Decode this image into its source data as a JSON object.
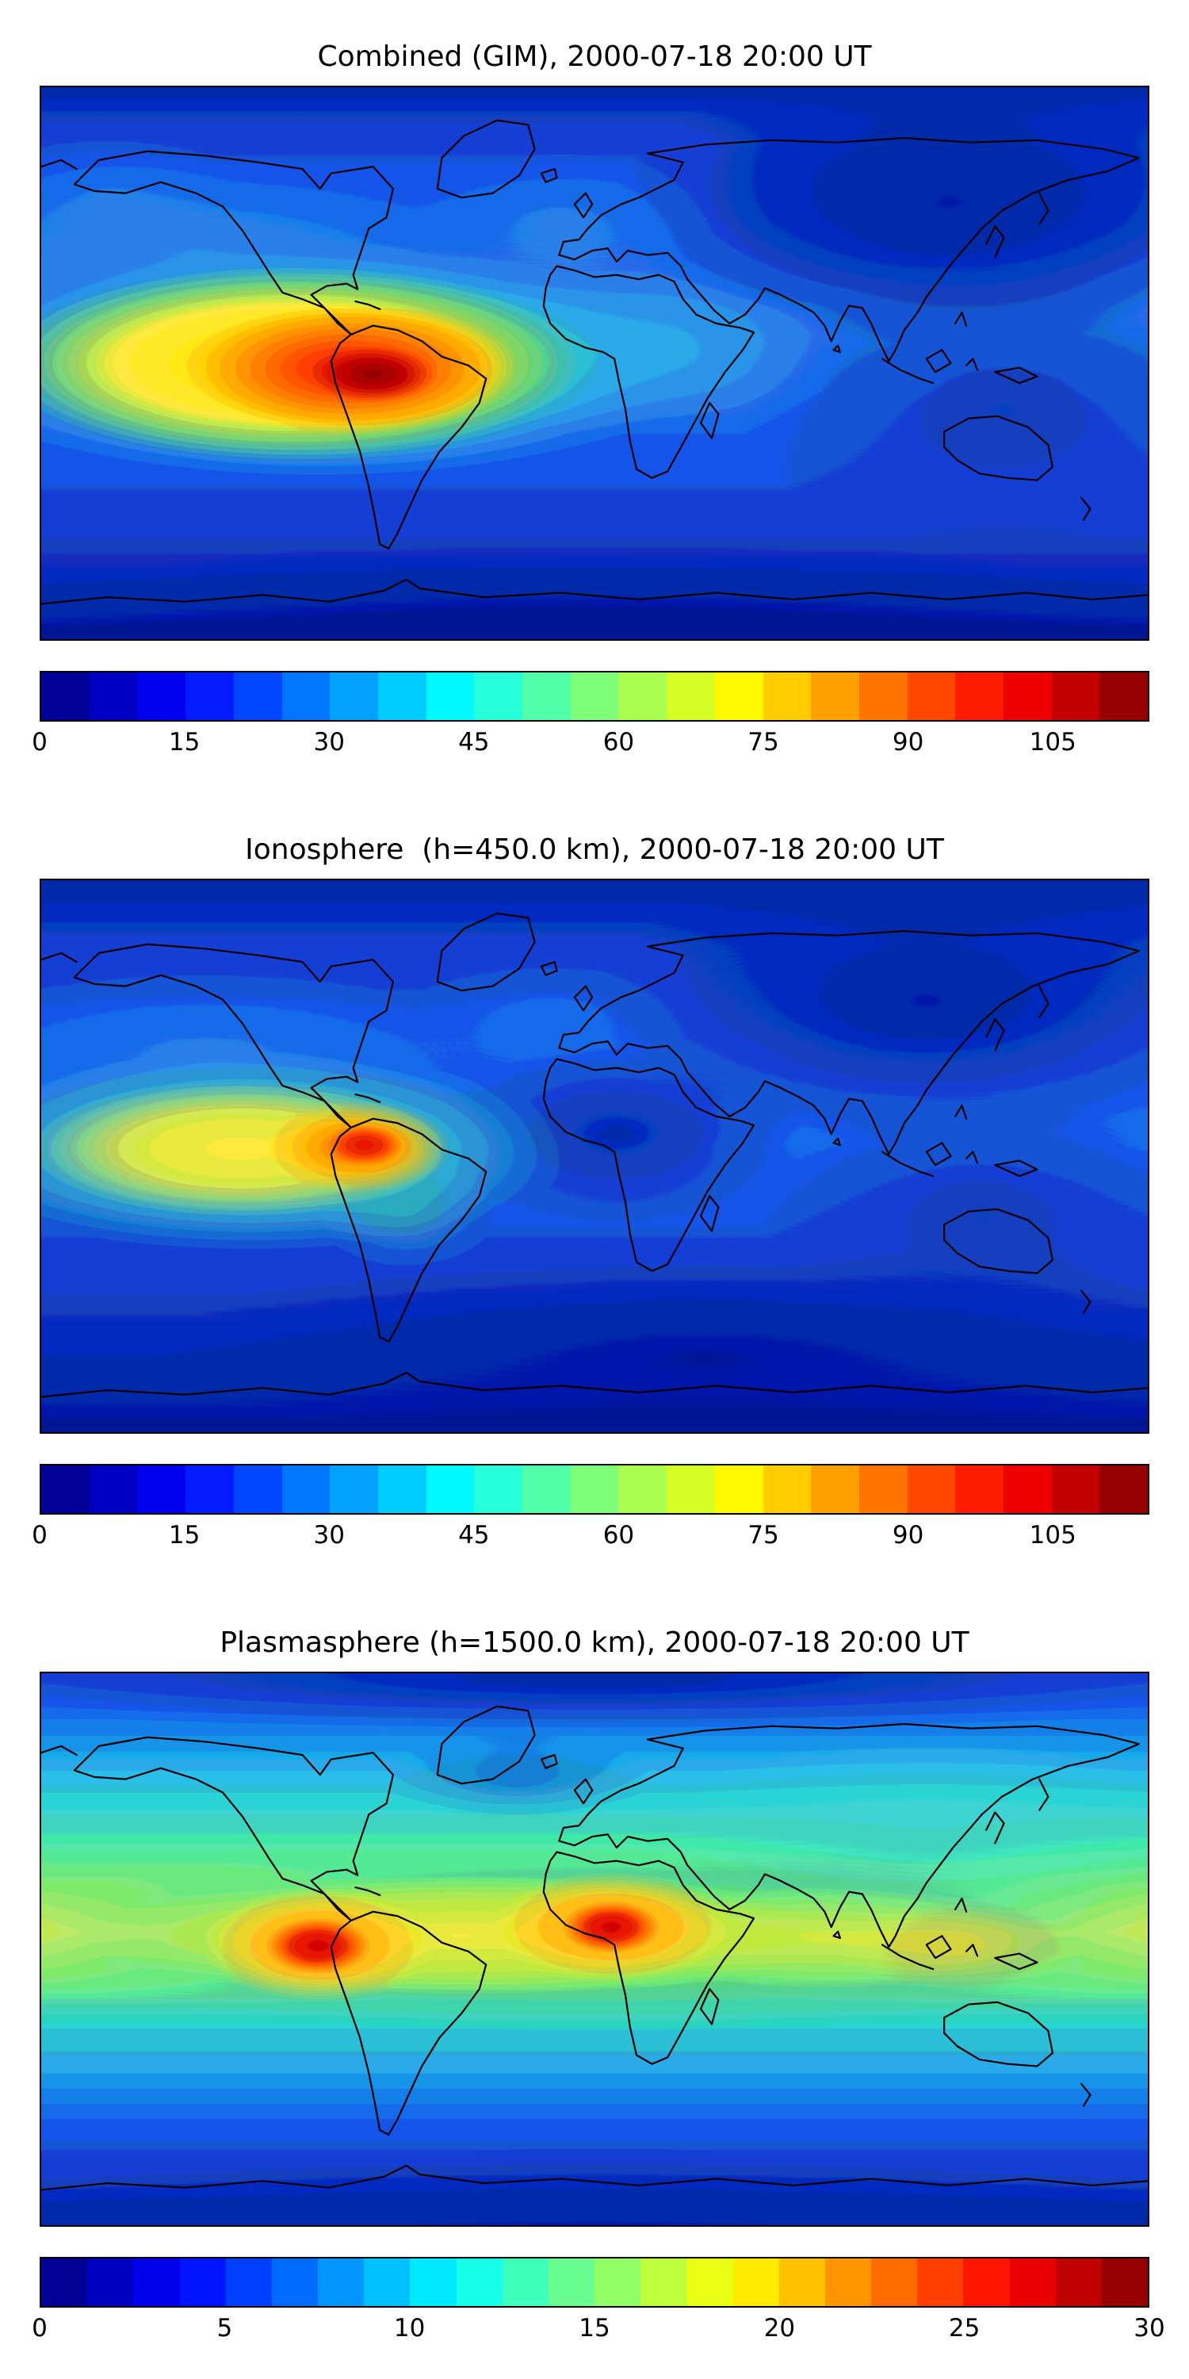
{
  "figure": {
    "background": "#ffffff",
    "text_color": "#000000"
  },
  "colormap": {
    "name": "jet",
    "stops": [
      [
        0.0,
        "#000080"
      ],
      [
        0.125,
        "#0000ff"
      ],
      [
        0.25,
        "#0080ff"
      ],
      [
        0.375,
        "#00ffff"
      ],
      [
        0.5,
        "#7dff7a"
      ],
      [
        0.625,
        "#ffff00"
      ],
      [
        0.75,
        "#ff8000"
      ],
      [
        0.875,
        "#ff0000"
      ],
      [
        1.0,
        "#800000"
      ]
    ]
  },
  "panels": [
    {
      "id": "combined",
      "title": "Combined (GIM), 2000-07-18 20:00 UT",
      "colorbar": {
        "vmin": 0,
        "vmax": 115,
        "segments": 23,
        "ticks": [
          0,
          15,
          30,
          45,
          60,
          75,
          90,
          105
        ]
      }
    },
    {
      "id": "ionosphere",
      "title": "Ionosphere  (h=450.0 km), 2000-07-18 20:00 UT",
      "colorbar": {
        "vmin": 0,
        "vmax": 115,
        "segments": 23,
        "ticks": [
          0,
          15,
          30,
          45,
          60,
          75,
          90,
          105
        ]
      }
    },
    {
      "id": "plasmasphere",
      "title": "Plasmasphere (h=1500.0 km), 2000-07-18 20:00 UT",
      "colorbar": {
        "vmin": 0,
        "vmax": 30,
        "segments": 24,
        "ticks": [
          0,
          5,
          10,
          15,
          20,
          25,
          30
        ]
      }
    }
  ],
  "chart_data": [
    {
      "type": "heatmap",
      "subtype": "filled-contour-world-map",
      "title": "Combined (GIM), 2000-07-18 20:00 UT",
      "datetime_ut": "2000-07-18 20:00",
      "projection": "equirectangular",
      "lon_range": [
        -180,
        180
      ],
      "lat_range": [
        -90,
        90
      ],
      "colormap": "jet",
      "value_range": [
        0,
        115
      ],
      "colorbar_ticks": [
        0,
        15,
        30,
        45,
        60,
        75,
        90,
        105
      ],
      "grid": false,
      "coastlines": true,
      "features": [
        {
          "label": "absolute-peak",
          "lon": -62,
          "lat": -8,
          "value": 112
        },
        {
          "label": "secondary-maximum-east-pacific",
          "lon": -120,
          "lat": -3,
          "value": 95
        },
        {
          "label": "pacific-daytime-band",
          "lon": -165,
          "lat": -5,
          "value": 70
        },
        {
          "label": "atlantic-equatorial",
          "lon": 5,
          "lat": 0,
          "value": 45
        },
        {
          "label": "nightside-asia-minimum",
          "lon": 110,
          "lat": 40,
          "value": 8
        },
        {
          "label": "south-polar-region",
          "lon": 0,
          "lat": -75,
          "value": 12
        }
      ]
    },
    {
      "type": "heatmap",
      "subtype": "filled-contour-world-map",
      "title": "Ionosphere  (h=450.0 km), 2000-07-18 20:00 UT",
      "datetime_ut": "2000-07-18 20:00",
      "altitude_km": 450.0,
      "projection": "equirectangular",
      "lon_range": [
        -180,
        180
      ],
      "lat_range": [
        -90,
        90
      ],
      "colormap": "jet",
      "value_range": [
        0,
        115
      ],
      "colorbar_ticks": [
        0,
        15,
        30,
        45,
        60,
        75,
        90,
        105
      ],
      "grid": false,
      "coastlines": true,
      "features": [
        {
          "label": "peak-northwest-south-america",
          "lon": -75,
          "lat": -2,
          "value": 95
        },
        {
          "label": "pacific-yellow-band",
          "lon": -120,
          "lat": -3,
          "value": 68
        },
        {
          "label": "atlantic-africa-minimum",
          "lon": 8,
          "lat": 8,
          "value": 6
        },
        {
          "label": "nightside-asia-minimum",
          "lon": 110,
          "lat": 40,
          "value": 5
        },
        {
          "label": "south-polar-region",
          "lon": 60,
          "lat": -65,
          "value": 8
        }
      ]
    },
    {
      "type": "heatmap",
      "subtype": "filled-contour-world-map",
      "title": "Plasmasphere (h=1500.0 km), 2000-07-18 20:00 UT",
      "datetime_ut": "2000-07-18 20:00",
      "altitude_km": 1500.0,
      "projection": "equirectangular",
      "lon_range": [
        -180,
        180
      ],
      "lat_range": [
        -90,
        90
      ],
      "colormap": "jet",
      "value_range": [
        0,
        30
      ],
      "colorbar_ticks": [
        0,
        5,
        10,
        15,
        20,
        25,
        30
      ],
      "grid": false,
      "coastlines": true,
      "features": [
        {
          "label": "peak-colombia-ecuador",
          "lon": -88,
          "lat": -2,
          "value": 29
        },
        {
          "label": "peak-west-africa",
          "lon": 6,
          "lat": 7,
          "value": 29
        },
        {
          "label": "equatorial-green-yellow-band",
          "lon": 0,
          "lat": 3,
          "value": 20
        },
        {
          "label": "midlatitude-cyan-band-north",
          "lon": 100,
          "lat": 35,
          "value": 13
        },
        {
          "label": "midlatitude-cyan-band-south",
          "lon": -40,
          "lat": -35,
          "value": 12
        },
        {
          "label": "north-polar-minimum",
          "lon": 0,
          "lat": 85,
          "value": 4
        },
        {
          "label": "south-polar-minimum",
          "lon": 0,
          "lat": -85,
          "value": 3
        }
      ]
    }
  ]
}
